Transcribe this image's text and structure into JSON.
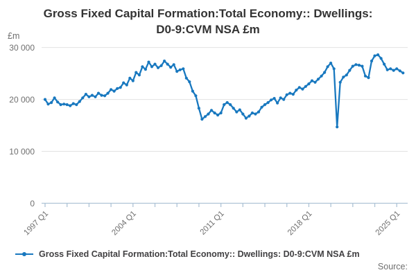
{
  "page": {
    "title_line1": "Gross Fixed Capital Formation:Total Economy:: Dwellings:",
    "title_line2": "D0-9:CVM NSA £m",
    "source_label": "Source:"
  },
  "legend": {
    "label": "Gross Fixed Capital Formation:Total Economy:: Dwellings: D0-9:CVM NSA £m"
  },
  "colors": {
    "line": "#1878bf",
    "axis": "#aec3d6",
    "grid": "#e2e2e2",
    "muted_text": "#6f6f6f",
    "title_text": "#333333"
  },
  "chart_data": {
    "type": "line",
    "title": "Gross Fixed Capital Formation:Total Economy:: Dwellings: D0-9:CVM NSA £m",
    "unit_label": "£m",
    "xlabel": "",
    "ylabel": "£m",
    "ylim": [
      0,
      30000
    ],
    "grid": true,
    "legend_position": "bottom-left",
    "frequency": "quarterly",
    "start_period": "1997 Q1",
    "end_period": "2025 Q3",
    "y_ticks": {
      "values": [
        0,
        10000,
        20000,
        30000
      ],
      "labels": [
        "0",
        "10 000",
        "20 000",
        "30 000"
      ]
    },
    "x_ticks": {
      "minor_every_quarters": 7,
      "minor_count": 17,
      "labeled": [
        {
          "index": 0,
          "label": "1997 Q1"
        },
        {
          "index": 28,
          "label": "2004 Q1"
        },
        {
          "index": 56,
          "label": "2011 Q1"
        },
        {
          "index": 84,
          "label": "2018 Q1"
        },
        {
          "index": 112,
          "label": "2025 Q1"
        }
      ]
    },
    "series": [
      {
        "name": "Gross Fixed Capital Formation:Total Economy:: Dwellings: D0-9:CVM NSA £m",
        "color": "#1878bf",
        "values": [
          20000,
          19100,
          19400,
          20300,
          19500,
          19000,
          19100,
          19000,
          18800,
          19200,
          19000,
          19600,
          20300,
          21000,
          20500,
          20800,
          20500,
          21200,
          20800,
          20700,
          21200,
          21900,
          21600,
          22100,
          22300,
          23200,
          22800,
          24100,
          23600,
          25200,
          24700,
          26300,
          25800,
          27200,
          26300,
          26800,
          26100,
          26500,
          27400,
          26800,
          26200,
          26700,
          25400,
          25700,
          25900,
          24100,
          23400,
          21600,
          20700,
          18300,
          16200,
          16700,
          17200,
          17900,
          17400,
          17000,
          17400,
          19000,
          19400,
          19000,
          18300,
          17600,
          18000,
          17200,
          16400,
          16800,
          17400,
          17200,
          17600,
          18500,
          19000,
          19400,
          19900,
          20200,
          19300,
          20300,
          20000,
          20900,
          21200,
          21000,
          21800,
          22300,
          22000,
          22500,
          23000,
          23600,
          23300,
          23900,
          24500,
          25200,
          26300,
          27000,
          25900,
          14700,
          23300,
          24300,
          24700,
          25600,
          26400,
          26700,
          26600,
          26400,
          24500,
          24200,
          27400,
          28400,
          28600,
          27900,
          26800,
          25700,
          25900,
          25600,
          25900,
          25500,
          25100
        ]
      }
    ]
  }
}
